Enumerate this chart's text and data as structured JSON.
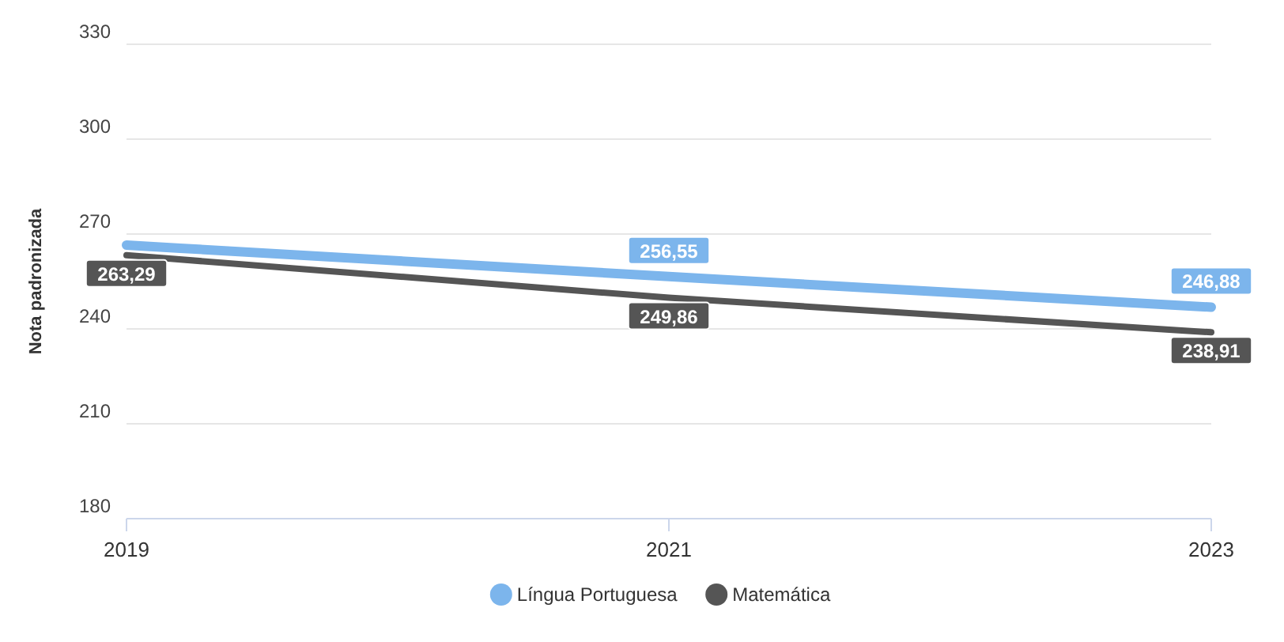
{
  "chart_data": {
    "type": "line",
    "ylabel": "Nota padronizada",
    "x": [
      2019,
      2021,
      2023
    ],
    "xlim": [
      2019,
      2023
    ],
    "xticks": [
      2019,
      2021,
      2023
    ],
    "ylim": [
      180,
      330
    ],
    "yticks": [
      180,
      210,
      240,
      270,
      300,
      330
    ],
    "grid": "y",
    "legend": "bottom",
    "marker": "none",
    "line_style": "solid",
    "series": [
      {
        "name": "Língua Portuguesa",
        "color": "#7cb5ec",
        "values": [
          266.5,
          256.55,
          246.88
        ],
        "value_labels": [
          null,
          "256,55",
          "246,88"
        ]
      },
      {
        "name": "Matemática",
        "color": "#555555",
        "values": [
          263.29,
          249.86,
          238.91
        ],
        "value_labels": [
          "263,29",
          "249,86",
          "238,91"
        ]
      }
    ]
  }
}
